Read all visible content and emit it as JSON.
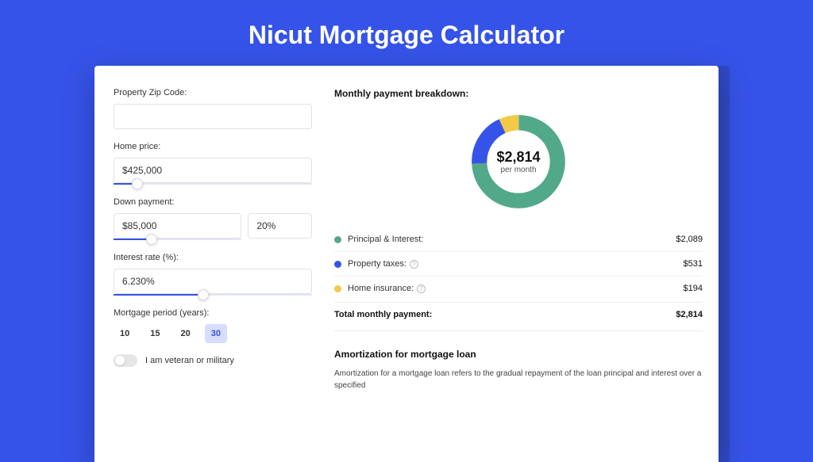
{
  "page": {
    "title": "Nicut Mortgage Calculator",
    "background_color": "#3553e8",
    "card_background": "#ffffff",
    "card_shadow_color": "#2f49c4"
  },
  "form": {
    "zip": {
      "label": "Property Zip Code:",
      "value": ""
    },
    "home_price": {
      "label": "Home price:",
      "value": "$425,000",
      "slider_percent": 12
    },
    "down_payment": {
      "label": "Down payment:",
      "amount": "$85,000",
      "percent": "20%",
      "slider_percent": 30
    },
    "interest_rate": {
      "label": "Interest rate (%):",
      "value": "6.230%",
      "slider_percent": 45
    },
    "period": {
      "label": "Mortgage period (years):",
      "options": [
        "10",
        "15",
        "20",
        "30"
      ],
      "selected": "30"
    },
    "veteran": {
      "label": "I am veteran or military",
      "checked": false
    }
  },
  "breakdown": {
    "title": "Monthly payment breakdown:",
    "donut": {
      "amount": "$2,814",
      "sub": "per month",
      "slices": [
        {
          "color": "#52a98a",
          "percent": 74.2
        },
        {
          "color": "#3553e8",
          "percent": 18.9
        },
        {
          "color": "#f3c948",
          "percent": 6.9
        }
      ]
    },
    "items": [
      {
        "label": "Principal & Interest:",
        "value": "$2,089",
        "color": "#52a98a",
        "info": false
      },
      {
        "label": "Property taxes:",
        "value": "$531",
        "color": "#3553e8",
        "info": true
      },
      {
        "label": "Home insurance:",
        "value": "$194",
        "color": "#f3c948",
        "info": true
      }
    ],
    "total": {
      "label": "Total monthly payment:",
      "value": "$2,814"
    }
  },
  "amortization": {
    "title": "Amortization for mortgage loan",
    "body": "Amortization for a mortgage loan refers to the gradual repayment of the loan principal and interest over a specified"
  }
}
